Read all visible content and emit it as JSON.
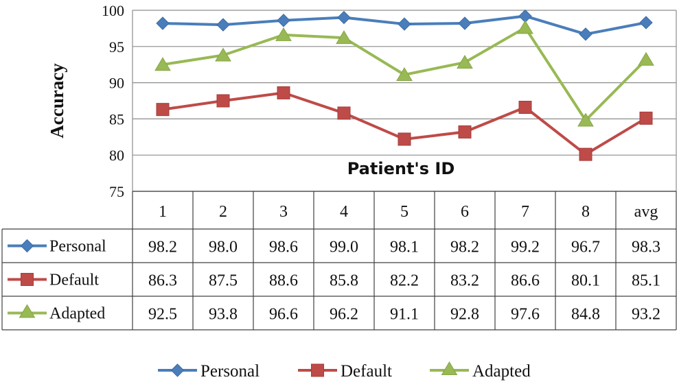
{
  "chart_data": {
    "type": "line",
    "xlabel": "Patient's ID",
    "ylabel": "Accuracy",
    "ylim": [
      75,
      100
    ],
    "yticks": [
      75,
      80,
      85,
      90,
      95,
      100
    ],
    "grid": true,
    "legend_position": "bottom",
    "categories": [
      "1",
      "2",
      "3",
      "4",
      "5",
      "6",
      "7",
      "8",
      "avg"
    ],
    "series": [
      {
        "name": "Personal",
        "color": "#4a7ebb",
        "marker": "diamond",
        "values": [
          98.2,
          98.0,
          98.6,
          99.0,
          98.1,
          98.2,
          99.2,
          96.7,
          98.3
        ]
      },
      {
        "name": "Default",
        "color": "#be4b48",
        "marker": "square",
        "values": [
          86.3,
          87.5,
          88.6,
          85.8,
          82.2,
          83.2,
          86.6,
          80.1,
          85.1
        ]
      },
      {
        "name": "Adapted",
        "color": "#98b954",
        "marker": "triangle",
        "values": [
          92.5,
          93.8,
          96.6,
          96.2,
          91.1,
          92.8,
          97.6,
          84.8,
          93.2
        ]
      }
    ],
    "table_values": [
      [
        "98.2",
        "98.0",
        "98.6",
        "99.0",
        "98.1",
        "98.2",
        "99.2",
        "96.7",
        "98.3"
      ],
      [
        "86.3",
        "87.5",
        "88.6",
        "85.8",
        "82.2",
        "83.2",
        "86.6",
        "80.1",
        "85.1"
      ],
      [
        "92.5",
        "93.8",
        "96.6",
        "96.2",
        "91.1",
        "92.8",
        "97.6",
        "84.8",
        "93.2"
      ]
    ]
  }
}
